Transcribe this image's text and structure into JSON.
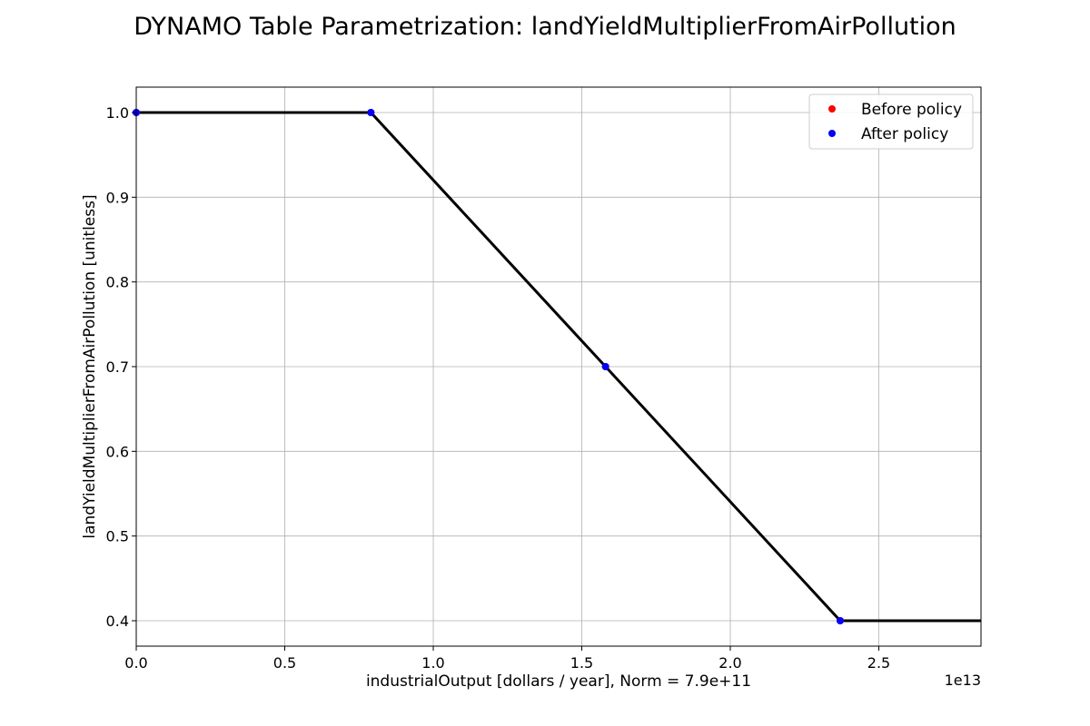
{
  "chart_data": {
    "type": "line",
    "title": "DYNAMO Table Parametrization: landYieldMultiplierFromAirPollution",
    "xlabel": "industrialOutput [dollars / year], Norm = 7.9e+11",
    "ylabel": "landYieldMultiplierFromAirPollution [unitless]",
    "x_offset_label": "1e13",
    "x_scale": 10000000000000.0,
    "xlim": [
      0,
      28440000000000.0
    ],
    "ylim": [
      0.37,
      1.03
    ],
    "xticks": [
      0,
      5000000000000.0,
      10000000000000.0,
      15000000000000.0,
      20000000000000.0,
      25000000000000.0
    ],
    "xtick_labels": [
      "0.0",
      "0.5",
      "1.0",
      "1.5",
      "2.0",
      "2.5"
    ],
    "yticks": [
      0.4,
      0.5,
      0.6,
      0.7,
      0.8,
      0.9,
      1.0
    ],
    "ytick_labels": [
      "0.4",
      "0.5",
      "0.6",
      "0.7",
      "0.8",
      "0.9",
      "1.0"
    ],
    "grid": true,
    "legend_position": "top-right",
    "curve": {
      "color": "#000000",
      "x": [
        0,
        7900000000000.0,
        15800000000000.0,
        23700000000000.0,
        28440000000000.0
      ],
      "y": [
        1.0,
        1.0,
        0.7,
        0.4,
        0.4
      ]
    },
    "series": [
      {
        "name": "Before policy",
        "color": "#ff0000",
        "x": [
          0,
          7900000000000.0,
          15800000000000.0,
          23700000000000.0
        ],
        "y": [
          1.0,
          1.0,
          0.7,
          0.4
        ]
      },
      {
        "name": "After policy",
        "color": "#0000ff",
        "x": [
          0,
          7900000000000.0,
          15800000000000.0,
          23700000000000.0
        ],
        "y": [
          1.0,
          1.0,
          0.7,
          0.4
        ]
      }
    ]
  }
}
